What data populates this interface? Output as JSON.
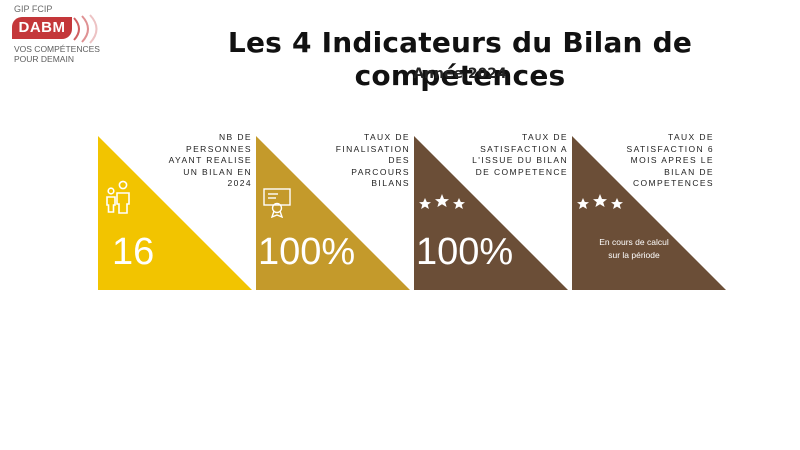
{
  "logo": {
    "top_text": "GIP FCIP",
    "brand": "DABM",
    "tagline_1": "VOS COMPÉTENCES",
    "tagline_2": "POUR DEMAIN",
    "color": "#c4373a"
  },
  "title": "Les 4 Indicateurs du Bilan de compétences",
  "subtitle": "Année 2024",
  "cards": [
    {
      "label_lines": [
        "NB DE",
        "PERSONNES",
        "AYANT REALISE",
        "UN BILAN EN",
        "2024"
      ],
      "value": "16",
      "color": "#f2c400",
      "icon": "people-icon"
    },
    {
      "label_lines": [
        "TAUX DE",
        "FINALISATION",
        "DES PARCOURS",
        "BILANS"
      ],
      "value": "100%",
      "color": "#c49a2b",
      "icon": "certificate-icon"
    },
    {
      "label_lines": [
        "TAUX DE",
        "SATISFACTION A",
        "L'ISSUE DU BILAN",
        "DE COMPETENCE"
      ],
      "value": "100%",
      "color": "#6b4e37",
      "icon": "three-stars-icon"
    },
    {
      "label_lines": [
        "TAUX DE",
        "SATISFACTION 6",
        "MOIS APRES LE",
        "BILAN DE",
        "COMPETENCES"
      ],
      "note_lines": [
        "En cours de calcul",
        "sur la période"
      ],
      "color": "#6b4e37",
      "icon": "three-stars-icon"
    }
  ]
}
